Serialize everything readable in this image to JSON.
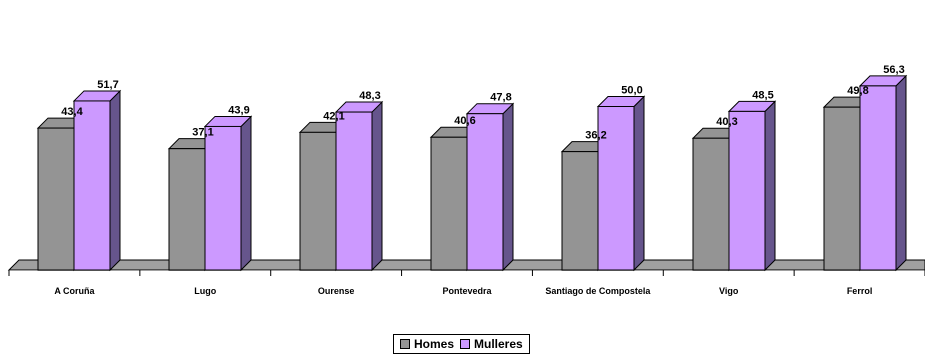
{
  "chart_data": {
    "type": "bar",
    "categories": [
      "A Coruña",
      "Lugo",
      "Ourense",
      "Pontevedra",
      "Santiago de Compostela",
      "Vigo",
      "Ferrol"
    ],
    "series": [
      {
        "name": "Homes",
        "values": [
          43.4,
          37.1,
          42.1,
          40.6,
          36.2,
          40.3,
          49.8
        ],
        "labels": [
          "43,4",
          "37,1",
          "42,1",
          "40,6",
          "36,2",
          "40,3",
          "49,8"
        ],
        "color": "#949494"
      },
      {
        "name": "Mulleres",
        "values": [
          51.7,
          43.9,
          48.3,
          47.8,
          50.0,
          48.5,
          56.3
        ],
        "labels": [
          "51,7",
          "43,9",
          "48,3",
          "47,8",
          "50,0",
          "48,5",
          "56,3"
        ],
        "color": "#cc99ff"
      }
    ],
    "title": "",
    "xlabel": "",
    "ylabel": "",
    "ylim": [
      0,
      60
    ],
    "grid": false,
    "legend_position": "bottom",
    "three_d": true
  },
  "colors": {
    "homes_side": "#5a5a5a",
    "mulleres_side": "#66558c",
    "floor": "#a0a0a0",
    "outline": "#000000"
  }
}
